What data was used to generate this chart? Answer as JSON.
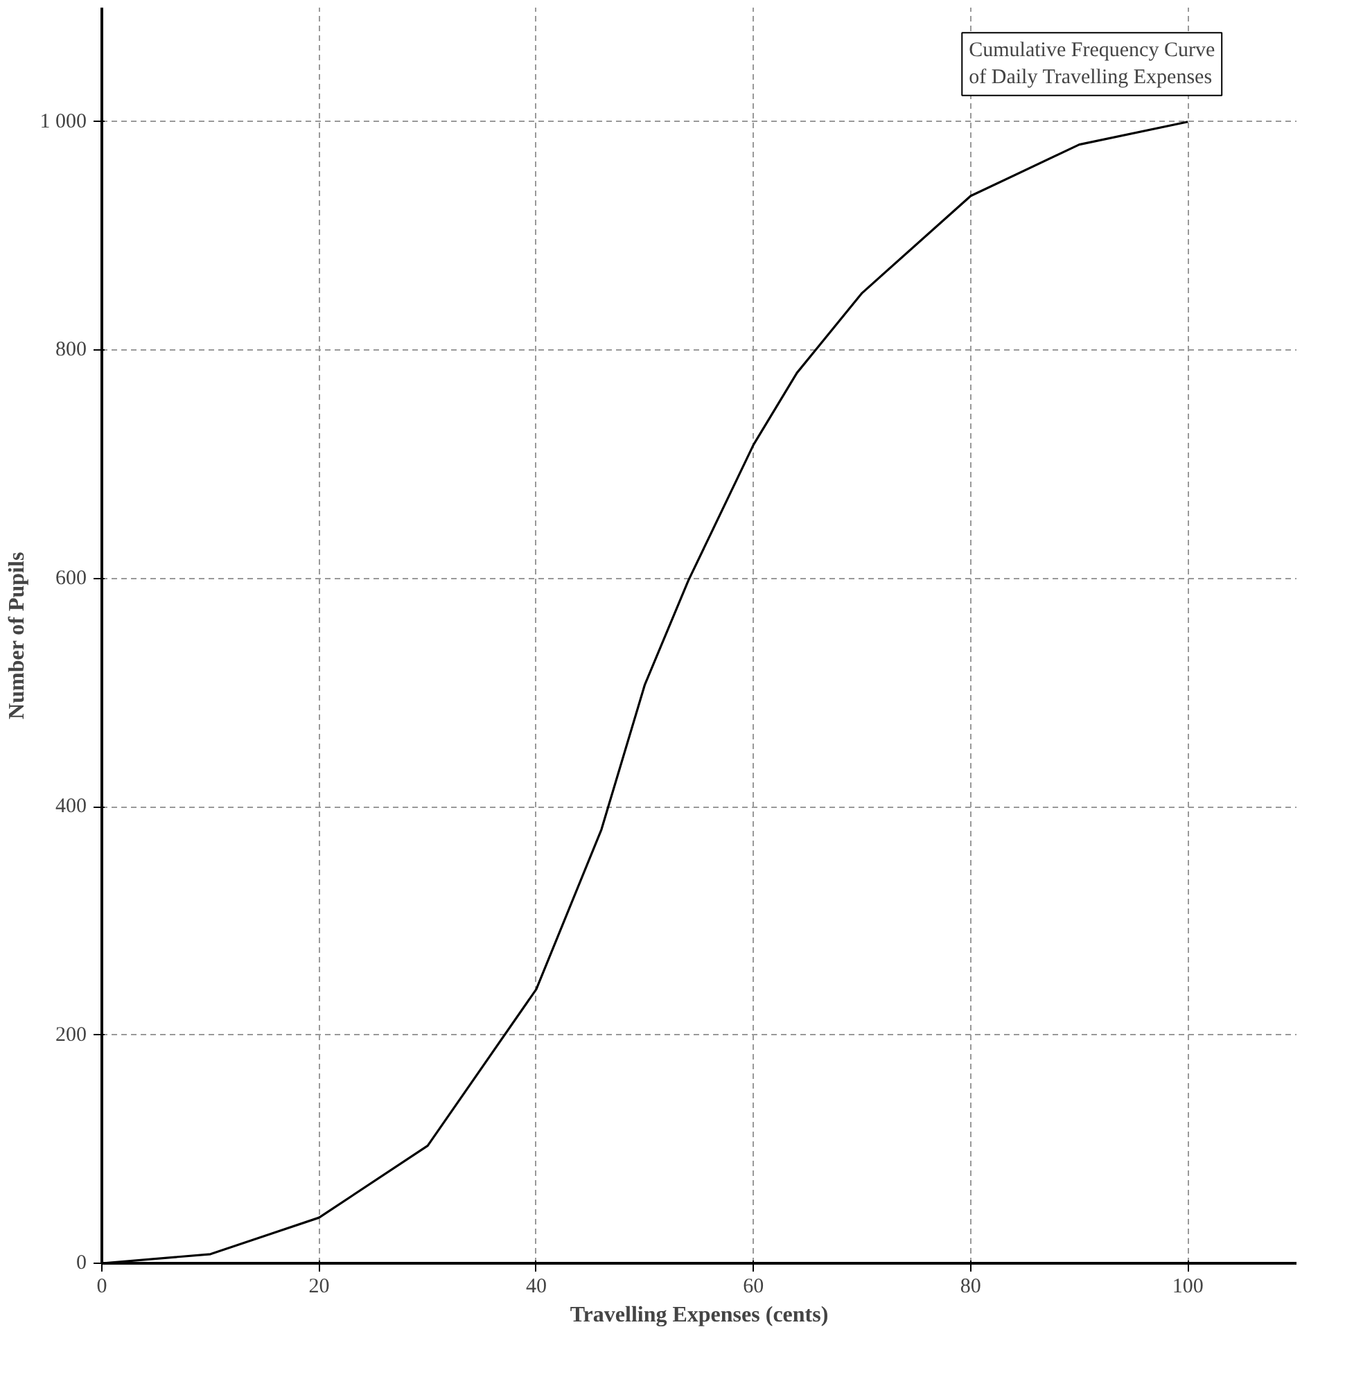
{
  "chart_data": {
    "type": "line",
    "title": "Cumulative Frequency Curve of Daily Travelling Expenses",
    "xlabel": "Travelling Expenses (cents)",
    "ylabel": "Number of Pupils",
    "x": [
      0,
      10,
      20,
      30,
      40,
      46,
      50,
      54,
      60,
      64,
      70,
      80,
      90,
      100
    ],
    "series": [
      {
        "color": "#000000",
        "values": [
          0,
          8,
          40,
          103,
          240,
          380,
          507,
          598,
          717,
          780,
          850,
          935,
          980,
          1000
        ]
      }
    ],
    "xlim": [
      0,
      110
    ],
    "ylim": [
      0,
      1100
    ],
    "xticks": [
      0,
      20,
      40,
      60,
      80,
      100
    ],
    "yticks": [
      0,
      200,
      400,
      600,
      800,
      {
        "value": 1000,
        "label": "1 000"
      }
    ],
    "grid": true,
    "line_style": "solid"
  }
}
